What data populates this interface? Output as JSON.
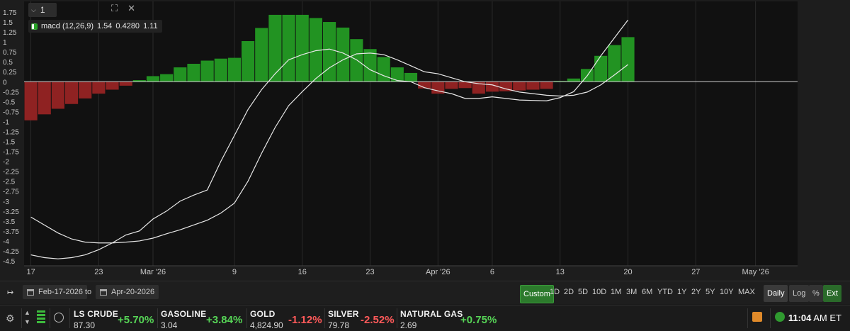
{
  "pane": {
    "label": "1"
  },
  "legend": {
    "name": "macd (12,26,9)",
    "v1": "1.54",
    "v2": "0.4280",
    "v3": "1.11"
  },
  "chart_data": {
    "type": "bar",
    "title": "",
    "y_ticks": [
      1.75,
      1.5,
      1.25,
      1,
      0.75,
      0.5,
      0.25,
      0,
      -0.25,
      -0.5,
      -0.75,
      -1,
      -1.25,
      -1.5,
      -1.75,
      -2,
      -2.25,
      -2.5,
      -2.75,
      -3,
      -3.25,
      -3.5,
      -3.75,
      -4,
      -4.25,
      -4.5
    ],
    "y_tick_labels": [
      "1.75",
      "1.5",
      "1.25",
      "1",
      "0.75",
      "0.5",
      "0.25",
      "0",
      "-0.25",
      "-0.5",
      "-0.75",
      "-1",
      "-1.25",
      "-1.5",
      "-1.75",
      "-2",
      "-2.25",
      "-2.5",
      "-2.75",
      "-3",
      "-3.25",
      "-3.5",
      "-3.75",
      "-4",
      "-4.25",
      "-4.5"
    ],
    "ylim": [
      -4.6,
      1.8
    ],
    "x_ticks": [
      "17",
      "23",
      "Mar '26",
      "9",
      "16",
      "23",
      "Apr '26",
      "6",
      "13",
      "20",
      "27",
      "May '26"
    ],
    "x_tick_index": [
      0,
      5,
      9,
      15,
      20,
      25,
      30,
      34,
      39,
      44,
      49,
      53.4
    ],
    "x_range": [
      0,
      57
    ],
    "colors": {
      "positive": "#229322",
      "negative": "#8f2222",
      "lines": "#e8e8e8",
      "zero": "#d0d0d0"
    },
    "series": [
      {
        "kind": "histogram",
        "values": [
          -0.97,
          -0.82,
          -0.68,
          -0.56,
          -0.42,
          -0.3,
          -0.2,
          -0.1,
          0.04,
          0.14,
          0.19,
          0.36,
          0.45,
          0.53,
          0.58,
          0.6,
          1.02,
          1.35,
          1.68,
          1.68,
          1.68,
          1.6,
          1.5,
          1.36,
          1.07,
          0.82,
          0.62,
          0.36,
          0.22,
          -0.17,
          -0.3,
          -0.18,
          -0.16,
          -0.3,
          -0.25,
          -0.24,
          -0.22,
          -0.2,
          -0.18,
          0.02,
          0.08,
          0.32,
          0.65,
          0.92,
          1.12
        ]
      },
      {
        "kind": "line",
        "values": [
          -3.4,
          -3.6,
          -3.8,
          -3.95,
          -4.03,
          -4.05,
          -4.05,
          -4.03,
          -4.0,
          -3.93,
          -3.82,
          -3.72,
          -3.6,
          -3.48,
          -3.3,
          -3.05,
          -2.5,
          -1.8,
          -1.15,
          -0.6,
          -0.25,
          0.08,
          0.35,
          0.55,
          0.7,
          0.72,
          0.68,
          0.55,
          0.4,
          0.25,
          0.2,
          0.1,
          0.0,
          -0.05,
          -0.08,
          -0.18,
          -0.26,
          -0.3,
          -0.34,
          -0.36,
          -0.34,
          -0.26,
          -0.08,
          0.17,
          0.43
        ]
      },
      {
        "kind": "line",
        "values": [
          -4.35,
          -4.42,
          -4.45,
          -4.42,
          -4.35,
          -4.22,
          -4.05,
          -3.85,
          -3.75,
          -3.45,
          -3.25,
          -3.0,
          -2.85,
          -2.72,
          -2.0,
          -1.35,
          -0.7,
          -0.2,
          0.2,
          0.55,
          0.68,
          0.78,
          0.82,
          0.72,
          0.55,
          0.3,
          0.15,
          0.03,
          0.0,
          -0.15,
          -0.23,
          -0.3,
          -0.42,
          -0.42,
          -0.38,
          -0.42,
          -0.46,
          -0.47,
          -0.48,
          -0.4,
          -0.25,
          0.15,
          0.65,
          1.1,
          1.55
        ]
      }
    ]
  },
  "toolbar": {
    "from_date": "Feb-17-2026",
    "to_label": "to",
    "to_date": "Apr-20-2026",
    "ranges": [
      "Custom",
      "1D",
      "2D",
      "5D",
      "10D",
      "1M",
      "3M",
      "6M",
      "YTD",
      "1Y",
      "2Y",
      "5Y",
      "10Y",
      "MAX"
    ],
    "modes": [
      "Daily",
      "Log",
      "%",
      "Ext"
    ]
  },
  "tickers": [
    {
      "name": "LS CRUDE",
      "price": "87.30",
      "change": "+5.70%",
      "dir": "pos"
    },
    {
      "name": "GASOLINE",
      "price": "3.04",
      "change": "+3.84%",
      "dir": "pos"
    },
    {
      "name": "GOLD",
      "price": "4,824.90",
      "change": "-1.12%",
      "dir": "neg"
    },
    {
      "name": "SILVER",
      "price": "79.78",
      "change": "-2.52%",
      "dir": "neg"
    },
    {
      "name": "NATURAL GAS",
      "price": "2.69",
      "change": "+0.75%",
      "dir": "pos"
    }
  ],
  "clock": {
    "time": "11:04",
    "tz": "AM ET"
  }
}
